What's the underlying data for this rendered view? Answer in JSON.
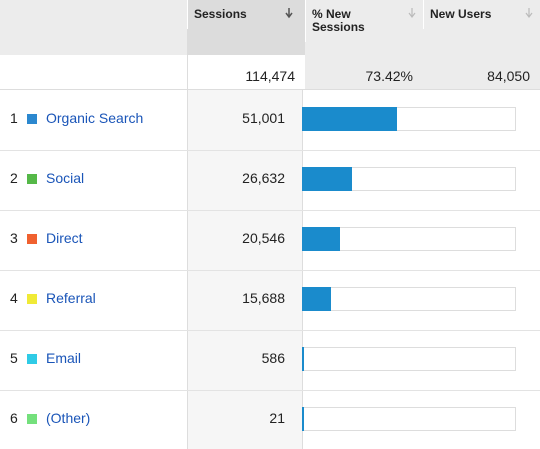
{
  "table": {
    "headers": [
      "Sessions",
      "% New Sessions",
      "New Users"
    ],
    "totals": [
      "114,474",
      "73.42%",
      "84,050"
    ],
    "total_sessions": 114474,
    "bar_color": "#1a8bcc",
    "rows": [
      {
        "rank": 1,
        "color": "#2b88cf",
        "name": "Organic Search",
        "sessions": 51001,
        "sessions_label": "51,001"
      },
      {
        "rank": 2,
        "color": "#55b848",
        "name": "Social",
        "sessions": 26632,
        "sessions_label": "26,632"
      },
      {
        "rank": 3,
        "color": "#f0612f",
        "name": "Direct",
        "sessions": 20546,
        "sessions_label": "20,546"
      },
      {
        "rank": 4,
        "color": "#f0ea36",
        "name": "Referral",
        "sessions": 15688,
        "sessions_label": "15,688"
      },
      {
        "rank": 5,
        "color": "#2fcbe6",
        "name": "Email",
        "sessions": 586,
        "sessions_label": "586"
      },
      {
        "rank": 6,
        "color": "#74e07c",
        "name": "(Other)",
        "sessions": 21,
        "sessions_label": "21"
      }
    ]
  }
}
